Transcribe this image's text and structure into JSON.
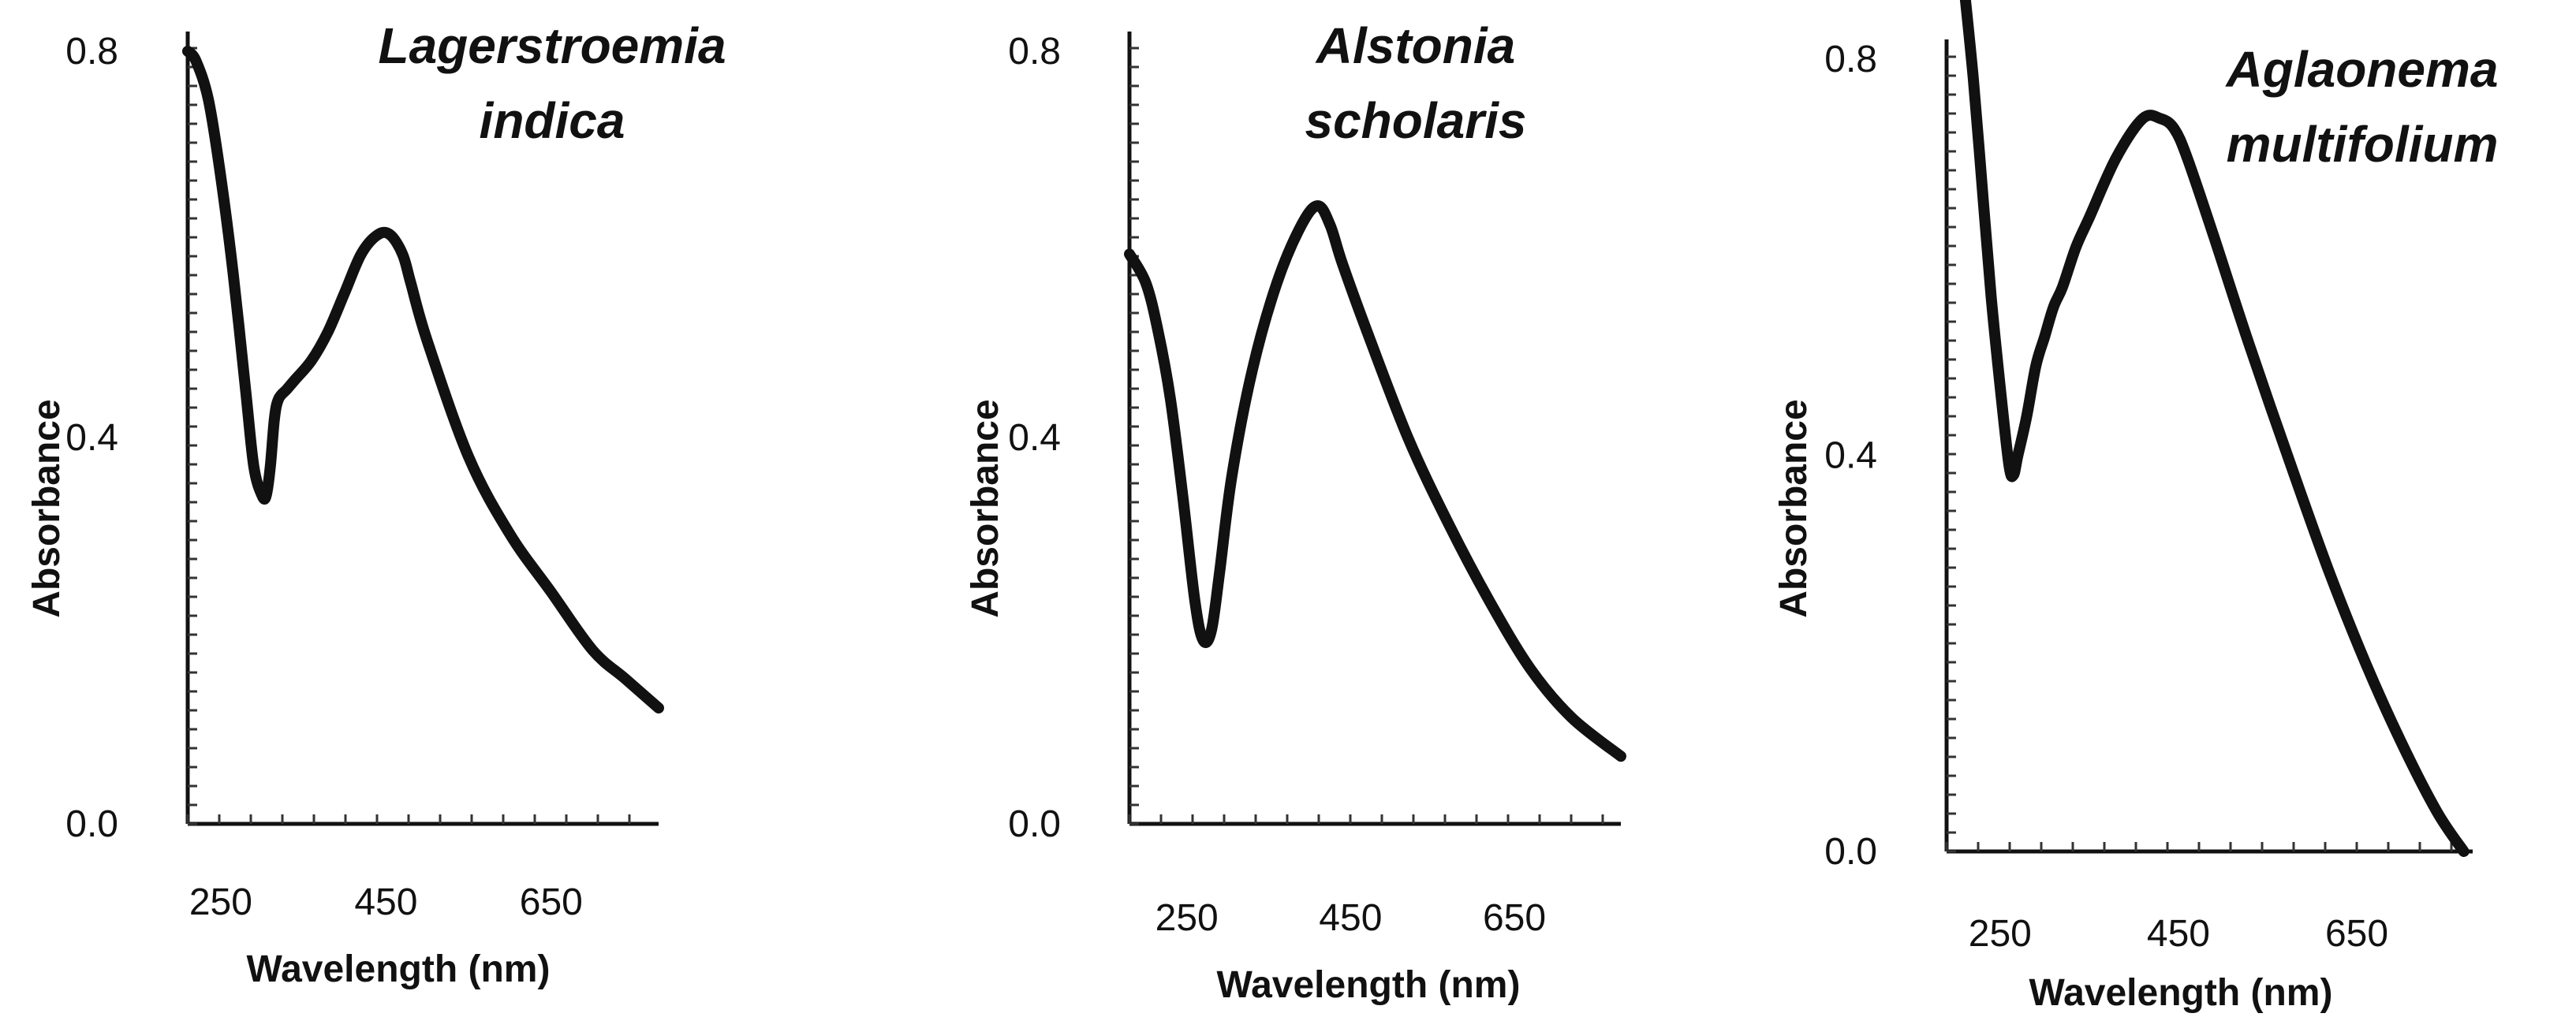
{
  "chart_data": [
    {
      "type": "line",
      "title": [
        "Lagerstroemia",
        "indica"
      ],
      "xlabel": "Wavelength (nm)",
      "ylabel": "Absorbance",
      "xlim": [
        210,
        780
      ],
      "ylim": [
        0.0,
        0.8
      ],
      "xticks": [
        250,
        450,
        650
      ],
      "xtick_labels": [
        "250",
        "450",
        "650"
      ],
      "yticks": [
        0.0,
        0.4,
        0.8
      ],
      "ytick_labels": [
        "0.0",
        "0.4",
        "0.8"
      ],
      "series": [
        {
          "name": "Lagerstroemia indica",
          "x": [
            210,
            220,
            235,
            250,
            265,
            280,
            290,
            300,
            305,
            310,
            315,
            320,
            330,
            340,
            360,
            380,
            400,
            420,
            440,
            455,
            470,
            480,
            500,
            550,
            600,
            650,
            700,
            740,
            780
          ],
          "y": [
            0.8,
            0.79,
            0.75,
            0.67,
            0.57,
            0.45,
            0.37,
            0.34,
            0.34,
            0.37,
            0.42,
            0.44,
            0.45,
            0.46,
            0.48,
            0.51,
            0.55,
            0.59,
            0.61,
            0.61,
            0.59,
            0.56,
            0.5,
            0.38,
            0.3,
            0.24,
            0.18,
            0.15,
            0.12
          ]
        }
      ]
    },
    {
      "type": "line",
      "title": [
        "Alstonia",
        "scholaris"
      ],
      "xlabel": "Wavelength (nm)",
      "ylabel": "Absorbance",
      "xlim": [
        180,
        780
      ],
      "ylim": [
        0.0,
        0.8
      ],
      "xticks": [
        250,
        450,
        650
      ],
      "xtick_labels": [
        "250",
        "450",
        "650"
      ],
      "yticks": [
        0.0,
        0.4,
        0.8
      ],
      "ytick_labels": [
        "0.0",
        "0.4",
        "0.8"
      ],
      "series": [
        {
          "name": "Alstonia scholaris",
          "x": [
            180,
            200,
            215,
            230,
            245,
            260,
            270,
            280,
            290,
            305,
            330,
            360,
            390,
            410,
            425,
            440,
            470,
            520,
            570,
            620,
            670,
            720,
            780
          ],
          "y": [
            0.59,
            0.56,
            0.51,
            0.44,
            0.34,
            0.23,
            0.19,
            0.2,
            0.26,
            0.36,
            0.47,
            0.56,
            0.62,
            0.64,
            0.62,
            0.58,
            0.51,
            0.4,
            0.31,
            0.23,
            0.16,
            0.11,
            0.07
          ]
        }
      ]
    },
    {
      "type": "line",
      "title": [
        "Aglaonema",
        "multifolium"
      ],
      "xlabel": "Wavelength (nm)",
      "ylabel": "Absorbance",
      "xlim": [
        190,
        780
      ],
      "ylim": [
        0.0,
        0.8
      ],
      "xticks": [
        250,
        450,
        650
      ],
      "xtick_labels": [
        "250",
        "450",
        "650"
      ],
      "yticks": [
        0.0,
        0.4,
        0.8
      ],
      "ytick_labels": [
        "0.0",
        "0.4",
        "0.8"
      ],
      "series": [
        {
          "name": "Aglaonema multifolium",
          "x": [
            210,
            220,
            230,
            240,
            250,
            260,
            265,
            270,
            280,
            290,
            300,
            310,
            320,
            335,
            350,
            380,
            410,
            430,
            445,
            460,
            490,
            530,
            580,
            620,
            660,
            700,
            740,
            770
          ],
          "y": [
            0.87,
            0.78,
            0.67,
            0.56,
            0.47,
            0.39,
            0.38,
            0.4,
            0.44,
            0.49,
            0.52,
            0.55,
            0.57,
            0.61,
            0.64,
            0.7,
            0.74,
            0.74,
            0.73,
            0.7,
            0.62,
            0.51,
            0.38,
            0.28,
            0.19,
            0.11,
            0.04,
            0.0
          ]
        }
      ]
    }
  ]
}
